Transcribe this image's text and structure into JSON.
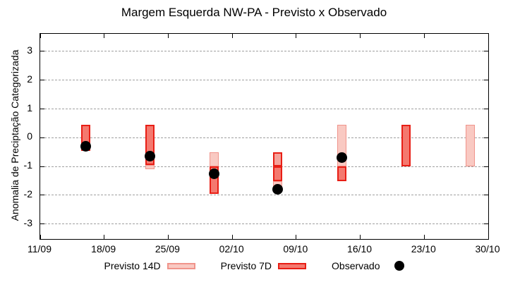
{
  "chart_data": {
    "type": "candlestick",
    "title": "Margem Esquerda NW-PA - Previsto x Observado",
    "ylabel": "Anomalia de Preciptação Categorizada",
    "yticks": [
      3,
      2,
      1,
      0,
      -1,
      -2,
      -3
    ],
    "ylim": [
      -3.52,
      3.61
    ],
    "x_total_days": 49,
    "xticks": [
      {
        "label": "11/09",
        "day": 0
      },
      {
        "label": "18/09",
        "day": 7
      },
      {
        "label": "25/09",
        "day": 14
      },
      {
        "label": "02/10",
        "day": 21
      },
      {
        "label": "09/10",
        "day": 28
      },
      {
        "label": "16/10",
        "day": 35
      },
      {
        "label": "23/10",
        "day": 42
      },
      {
        "label": "30/10",
        "day": 49
      }
    ],
    "grid": "horizontal-dashed",
    "legend": [
      {
        "label": "Previsto 14D",
        "swatch": "box-light"
      },
      {
        "label": "Previsto 7D",
        "swatch": "box-dark"
      },
      {
        "label": "Observado",
        "swatch": "dot-black"
      }
    ],
    "colors": {
      "light_fill": "#f9c9c2",
      "light_border": "#f0948b",
      "medium_fill": "#f5a29a",
      "dark_fill": "#f4796f",
      "red_border": "#e81e15",
      "observed": "#000000",
      "grid_line": "#a0a0a0",
      "axis": "#000000"
    },
    "bars": [
      {
        "date": "16/09",
        "day": 5,
        "observed": -0.3,
        "segments": [
          {
            "from": 0.45,
            "to": -0.45,
            "shade": "dark",
            "border": "red"
          }
        ]
      },
      {
        "date": "23/09",
        "day": 12,
        "observed": -0.65,
        "segments": [
          {
            "from": -0.95,
            "to": -1.1,
            "shade": "light",
            "border": "light"
          },
          {
            "from": 0.45,
            "to": -0.95,
            "shade": "dark",
            "border": "red"
          }
        ]
      },
      {
        "date": "30/09",
        "day": 19,
        "observed": -1.25,
        "segments": [
          {
            "from": -0.5,
            "to": -1.0,
            "shade": "light",
            "border": "light"
          },
          {
            "from": -1.0,
            "to": -1.95,
            "shade": "dark",
            "border": "red"
          }
        ]
      },
      {
        "date": "07/10",
        "day": 26,
        "observed": -1.8,
        "segments": [
          {
            "from": -1.5,
            "to": -1.7,
            "shade": "light",
            "border": "light"
          },
          {
            "from": -0.5,
            "to": -1.0,
            "shade": "medium",
            "border": "red"
          },
          {
            "from": -1.0,
            "to": -1.5,
            "shade": "dark",
            "border": "red"
          }
        ]
      },
      {
        "date": "14/10",
        "day": 33,
        "observed": -0.7,
        "segments": [
          {
            "from": 0.45,
            "to": -1.0,
            "shade": "light",
            "border": "light"
          },
          {
            "from": -1.0,
            "to": -1.5,
            "shade": "dark",
            "border": "red"
          }
        ]
      },
      {
        "date": "21/10",
        "day": 40,
        "observed": null,
        "segments": [
          {
            "from": 0.45,
            "to": -1.0,
            "shade": "dark",
            "border": "red"
          }
        ]
      },
      {
        "date": "28/10",
        "day": 47,
        "observed": null,
        "segments": [
          {
            "from": 0.45,
            "to": -1.0,
            "shade": "light",
            "border": "light"
          }
        ]
      }
    ]
  }
}
